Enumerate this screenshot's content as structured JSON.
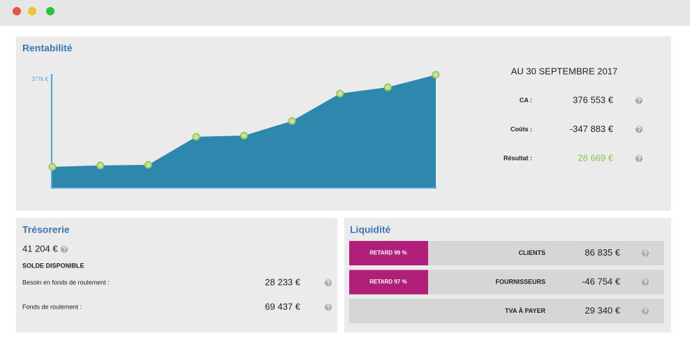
{
  "chart_data": {
    "type": "area",
    "title": "Rentabilité",
    "categories": [
      null,
      null,
      null,
      null,
      null,
      null,
      null,
      null,
      null
    ],
    "values": [
      68,
      73,
      75,
      169,
      173,
      222,
      314,
      335,
      377
    ],
    "color": "#2e88ae",
    "marker_color": "#9bc75b",
    "ylim": [
      0,
      377
    ],
    "yticks": [
      {
        "value": 377,
        "label": "377k €"
      }
    ],
    "grid": false
  },
  "rentabilite_summary": {
    "heading": "AU 30 SEPTEMBRE 2017",
    "rows": [
      {
        "label": "CA :",
        "value": "376 553 €"
      },
      {
        "label": "Coûts :",
        "value": "-347 883 €"
      },
      {
        "label": "Résultat :",
        "value": "28 669 €"
      }
    ]
  },
  "tresorerie": {
    "title": "Trésorerie",
    "balance": "41 204 €",
    "balance_label": "SOLDE DISPONIBLE",
    "rows": [
      {
        "label": "Besoin en fonds de roulement :",
        "value": "28 233 €"
      },
      {
        "label": "Fonds de roulement :",
        "value": "69 437 €"
      }
    ]
  },
  "liquidite": {
    "title": "Liquidité",
    "rows": [
      {
        "badge": "RETARD 99 %",
        "label": "CLIENTS",
        "value": "86 835 €"
      },
      {
        "badge": "RETARD 97 %",
        "label": "FOURNISSEURS",
        "value": "-46 754 €"
      },
      {
        "label": "TVA À PAYER",
        "value": "29 340 €"
      }
    ]
  }
}
